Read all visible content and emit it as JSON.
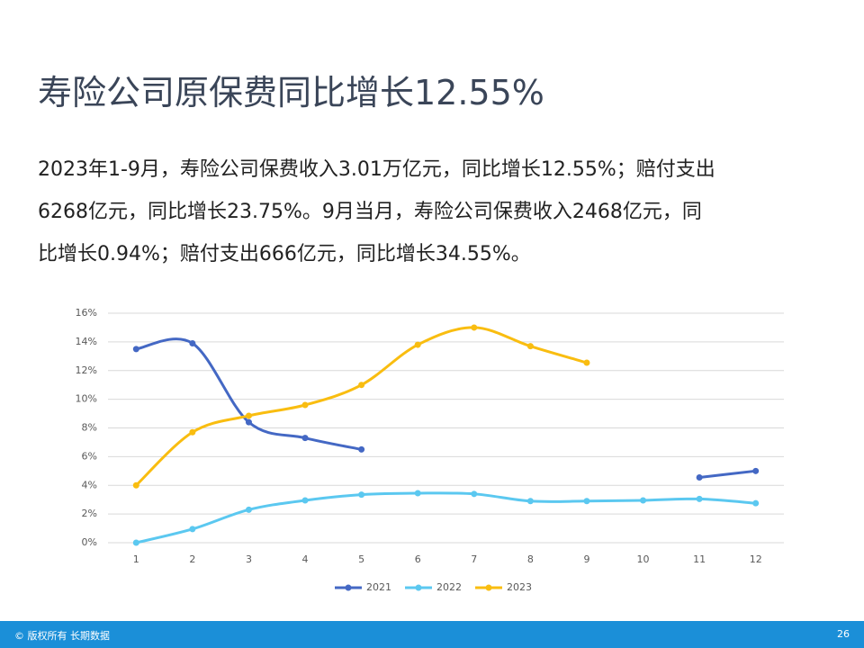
{
  "title": "寿险公司原保费同比增长12.55%",
  "paragraph": [
    "2023年1-9月，寿险公司保费收入3.01万亿元，同比增长12.55%；赔付支出",
    "6268亿元，同比增长23.75%。9月当月，寿险公司保费收入2468亿元，同",
    "比增长0.94%；赔付支出666亿元，同比增长34.55%。"
  ],
  "chart_data": {
    "type": "line",
    "x": [
      1,
      2,
      3,
      4,
      5,
      6,
      7,
      8,
      9,
      10,
      11,
      12
    ],
    "xlim": [
      0.5,
      12.5
    ],
    "ylim": [
      0,
      16
    ],
    "yticks": [
      {
        "value": 0,
        "label": "0%"
      },
      {
        "value": 2,
        "label": "2%"
      },
      {
        "value": 4,
        "label": "4%"
      },
      {
        "value": 6,
        "label": "6%"
      },
      {
        "value": 8,
        "label": "8%"
      },
      {
        "value": 10,
        "label": "10%"
      },
      {
        "value": 12,
        "label": "12%"
      },
      {
        "value": 14,
        "label": "14%"
      },
      {
        "value": 16,
        "label": "16%"
      }
    ],
    "grid": true,
    "legend": "bottom",
    "series": [
      {
        "name": "2021",
        "color": "#4468c4",
        "values": [
          13.5,
          13.9,
          8.4,
          7.3,
          6.5,
          null,
          null,
          null,
          null,
          null,
          4.55,
          5.0
        ]
      },
      {
        "name": "2022",
        "color": "#5bc8f0",
        "values": [
          0.0,
          0.95,
          2.3,
          2.95,
          3.35,
          3.45,
          3.4,
          2.9,
          2.9,
          2.95,
          3.05,
          2.75
        ]
      },
      {
        "name": "2023",
        "color": "#f9bd10",
        "values": [
          4.0,
          7.7,
          8.85,
          9.6,
          11.0,
          13.8,
          15.0,
          13.7,
          12.55,
          null,
          null,
          null
        ]
      }
    ]
  },
  "footer": {
    "copyright": "© 版权所有 长期数据",
    "page": "26"
  }
}
